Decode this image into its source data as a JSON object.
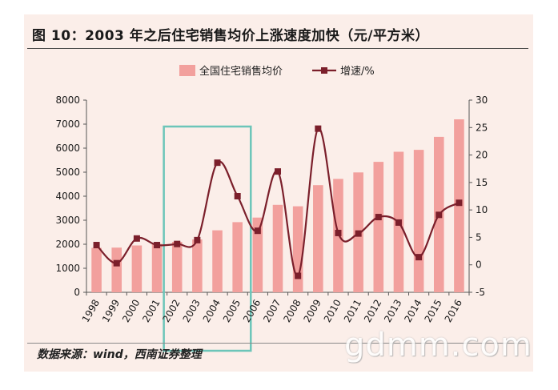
{
  "title": "图 10：2003 年之后住宅销售均价上涨速度加快（元/平方米）",
  "source": "数据来源：wind，西南证券整理",
  "watermark": "gdmm.com",
  "chart_data": {
    "type": "bar",
    "categories": [
      "1998",
      "1999",
      "2000",
      "2001",
      "2002",
      "2003",
      "2004",
      "2005",
      "2006",
      "2007",
      "2008",
      "2009",
      "2010",
      "2011",
      "2012",
      "2013",
      "2014",
      "2015",
      "2016"
    ],
    "series": [
      {
        "name": "全国住宅销售均价",
        "type": "bar",
        "axis": "left",
        "color": "#f2a09d",
        "values": [
          1850,
          1860,
          1950,
          2020,
          2100,
          2200,
          2580,
          2920,
          3110,
          3640,
          3580,
          4460,
          4720,
          4990,
          5430,
          5850,
          5930,
          6470,
          7200
        ]
      },
      {
        "name": "增速/%",
        "type": "line",
        "axis": "right",
        "color": "#7b1f2b",
        "values": [
          3.6,
          0.3,
          4.8,
          3.6,
          3.8,
          4.5,
          18.6,
          12.5,
          6.2,
          17.0,
          -2.0,
          24.8,
          5.8,
          5.7,
          8.7,
          7.7,
          1.4,
          9.1,
          11.3
        ]
      }
    ],
    "y_left": {
      "min": 0,
      "max": 8000,
      "ticks": [
        0,
        1000,
        2000,
        3000,
        4000,
        5000,
        6000,
        7000,
        8000
      ]
    },
    "y_right": {
      "min": -5,
      "max": 30,
      "ticks": [
        -5,
        0,
        5,
        10,
        15,
        20,
        25,
        30
      ]
    },
    "legend": {
      "position": "top-center"
    },
    "highlight_box": {
      "from": "2002",
      "to": "2005",
      "color": "#6cc5b9"
    },
    "grid": false
  }
}
